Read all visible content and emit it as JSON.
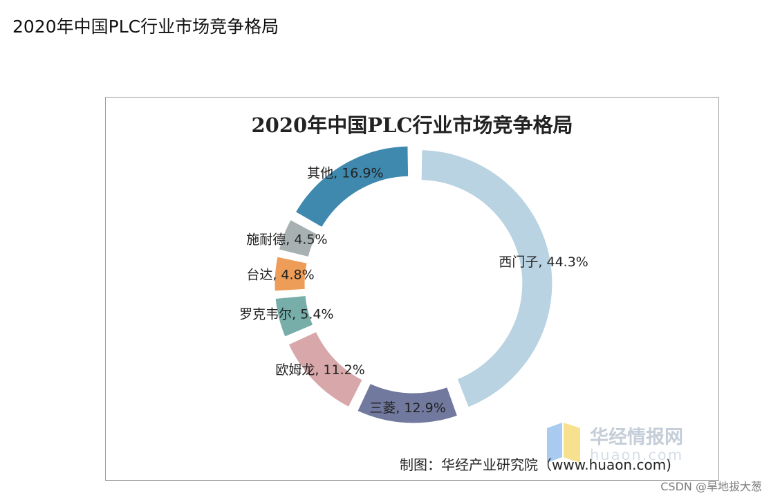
{
  "page": {
    "heading": "2020年中国PLC行业市场竞争格局",
    "credit": "CSDN @旱地拔大葱"
  },
  "chart_data": {
    "type": "pie",
    "style": "donut",
    "title": "2020年中国PLC行业市场竞争格局",
    "start": "top, clockwise",
    "slices": [
      {
        "name": "西门子",
        "value": 44.3,
        "label": "西门子, 44.3%",
        "color": "#b9d3e2"
      },
      {
        "name": "三菱",
        "value": 12.9,
        "label": "三菱, 12.9%",
        "color": "#717a9e"
      },
      {
        "name": "欧姆龙",
        "value": 11.2,
        "label": "欧姆龙, 11.2%",
        "color": "#d7a7a9"
      },
      {
        "name": "罗克韦尔",
        "value": 5.4,
        "label": "罗克韦尔, 5.4%",
        "color": "#77aeaa"
      },
      {
        "name": "台达",
        "value": 4.8,
        "label": "台达, 4.8%",
        "color": "#ee9d59"
      },
      {
        "name": "施耐德",
        "value": 4.5,
        "label": "施耐德, 4.5%",
        "color": "#a8b1b2"
      },
      {
        "name": "其他",
        "value": 16.9,
        "label": "其他, 16.9%",
        "color": "#3f88ae"
      }
    ],
    "source": "制图：华经产业研究院（www.huaon.com)",
    "watermark": {
      "text": "华经情报网",
      "url": "huaon.com"
    }
  }
}
